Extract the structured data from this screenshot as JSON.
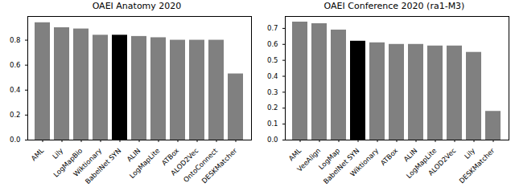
{
  "chart_data": [
    {
      "type": "bar",
      "title": "OAEI Anatomy 2020",
      "categories": [
        "AML",
        "Lily",
        "LogMapBio",
        "Wiktionary",
        "BabelNet SYN",
        "ALIN",
        "LogMapLite",
        "ATBox",
        "ALOD2Vec",
        "OntoConnect",
        "DESKMatcher"
      ],
      "values": [
        0.94,
        0.9,
        0.89,
        0.84,
        0.84,
        0.83,
        0.82,
        0.8,
        0.8,
        0.8,
        0.53
      ],
      "colors": [
        "#808080",
        "#808080",
        "#808080",
        "#808080",
        "#000000",
        "#808080",
        "#808080",
        "#808080",
        "#808080",
        "#808080",
        "#808080"
      ],
      "ylim": [
        0,
        0.99
      ],
      "yticks": [
        {
          "value": 0,
          "label": "0.0"
        },
        0.2,
        0.4,
        0.6,
        0.8
      ],
      "grid": false
    },
    {
      "type": "bar",
      "title": "OAEI Conference 2020 (ra1-M3)",
      "categories": [
        "AML",
        "VeeAlign",
        "LogMap",
        "BabelNet SYN",
        "Wiktionary",
        "ATBox",
        "ALIN",
        "LogMapLite",
        "ALOD2Vec",
        "Lily",
        "DESKMatcher"
      ],
      "values": [
        0.74,
        0.73,
        0.69,
        0.62,
        0.61,
        0.6,
        0.6,
        0.59,
        0.59,
        0.55,
        0.18
      ],
      "colors": [
        "#808080",
        "#808080",
        "#808080",
        "#000000",
        "#808080",
        "#808080",
        "#808080",
        "#808080",
        "#808080",
        "#808080",
        "#808080"
      ],
      "ylim": [
        0,
        0.775
      ],
      "yticks": [
        {
          "value": 0,
          "label": "0.0"
        },
        0.1,
        0.2,
        0.3,
        0.4,
        0.5,
        0.6,
        0.7
      ],
      "grid": false
    }
  ]
}
